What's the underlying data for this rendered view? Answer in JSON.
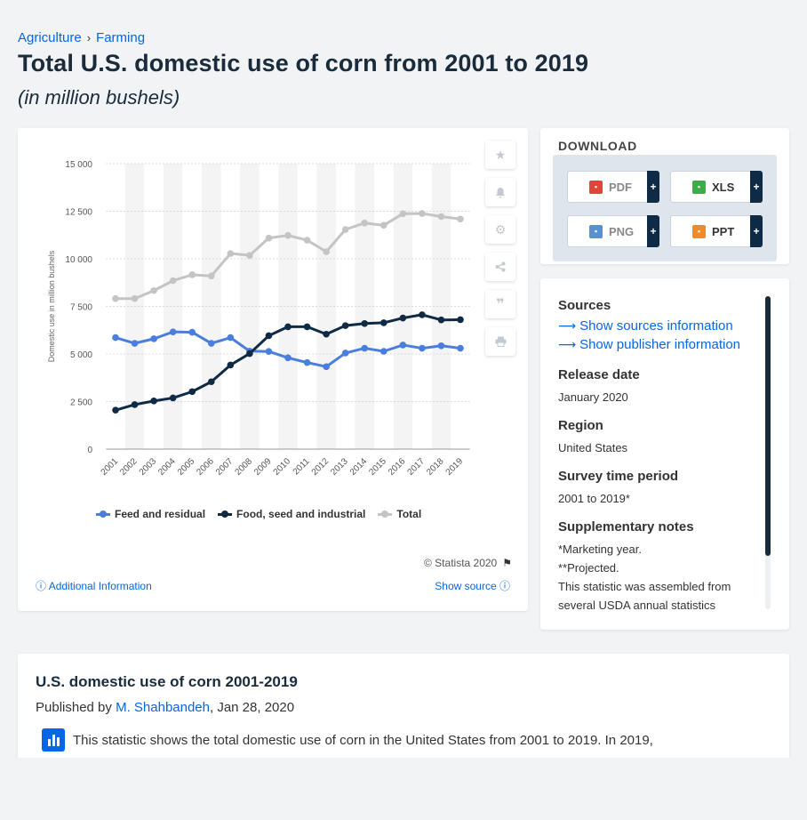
{
  "breadcrumb": {
    "items": [
      "Agriculture",
      "Farming"
    ],
    "separator": "›"
  },
  "page": {
    "title": "Total U.S. domestic use of corn from 2001 to 2019",
    "subtitle": "(in million bushels)"
  },
  "chart_card": {
    "copyright": "© Statista 2020",
    "additional_info": "Additional Information",
    "show_source": "Show source"
  },
  "chart_data": {
    "type": "line",
    "ylabel": "Domestic use in million bushels",
    "ylim": [
      0,
      15000
    ],
    "yticks": [
      0,
      2500,
      5000,
      7500,
      10000,
      12500,
      15000
    ],
    "ytick_labels": [
      "0",
      "2 500",
      "5 000",
      "7 500",
      "10 000",
      "12 500",
      "15 000"
    ],
    "categories": [
      "2001",
      "2002",
      "2003",
      "2004",
      "2005",
      "2006",
      "2007",
      "2008",
      "2009",
      "2010",
      "2011",
      "2012",
      "2013",
      "2014",
      "2015",
      "2016",
      "2017",
      "2018",
      "2019"
    ],
    "grid": true,
    "legend_position": "bottom",
    "series": [
      {
        "name": "Feed and residual",
        "color": "#4a7ede",
        "values": [
          5860,
          5560,
          5800,
          6160,
          6140,
          5560,
          5860,
          5150,
          5130,
          4800,
          4550,
          4330,
          5050,
          5300,
          5140,
          5470,
          5300,
          5430,
          5300
        ]
      },
      {
        "name": "Food, seed and industrial",
        "color": "#0f2a45",
        "values": [
          2050,
          2340,
          2530,
          2690,
          3020,
          3540,
          4420,
          5020,
          5960,
          6430,
          6430,
          6040,
          6490,
          6600,
          6640,
          6890,
          7060,
          6790,
          6800
        ]
      },
      {
        "name": "Total",
        "color": "#c4c4c4",
        "values": [
          7910,
          7910,
          8330,
          8850,
          9160,
          9100,
          10280,
          10180,
          11090,
          11230,
          10980,
          10370,
          11540,
          11880,
          11760,
          12370,
          12380,
          12220,
          12090
        ]
      }
    ]
  },
  "download": {
    "title": "DOWNLOAD",
    "buttons": [
      {
        "label": "PDF",
        "icon": "pdf-file-icon",
        "color": "#e0443a"
      },
      {
        "label": "XLS",
        "icon": "xls-file-icon",
        "color": "#3cae49"
      },
      {
        "label": "PNG",
        "icon": "png-file-icon",
        "color": "#5a8fd0"
      },
      {
        "label": "PPT",
        "icon": "ppt-file-icon",
        "color": "#f18a2a"
      }
    ],
    "plus": "+"
  },
  "sources": {
    "heading": "Sources",
    "link1": "Show sources information",
    "link2": "Show publisher information",
    "release_label": "Release date",
    "release_value": "January 2020",
    "region_label": "Region",
    "region_value": "United States",
    "period_label": "Survey time period",
    "period_value": "2001 to 2019*",
    "notes_label": "Supplementary notes",
    "notes_lines": [
      "*Marketing year.",
      "**Projected.",
      "This statistic was assembled from",
      "several USDA annual statistics"
    ]
  },
  "description": {
    "title": "U.S. domestic use of corn 2001-2019",
    "published_by": "Published by",
    "author": "M. Shahbandeh",
    "date": ", Jan 28, 2020",
    "text": "This statistic shows the total domestic use of corn in the United States from 2001 to 2019. In 2019,"
  }
}
